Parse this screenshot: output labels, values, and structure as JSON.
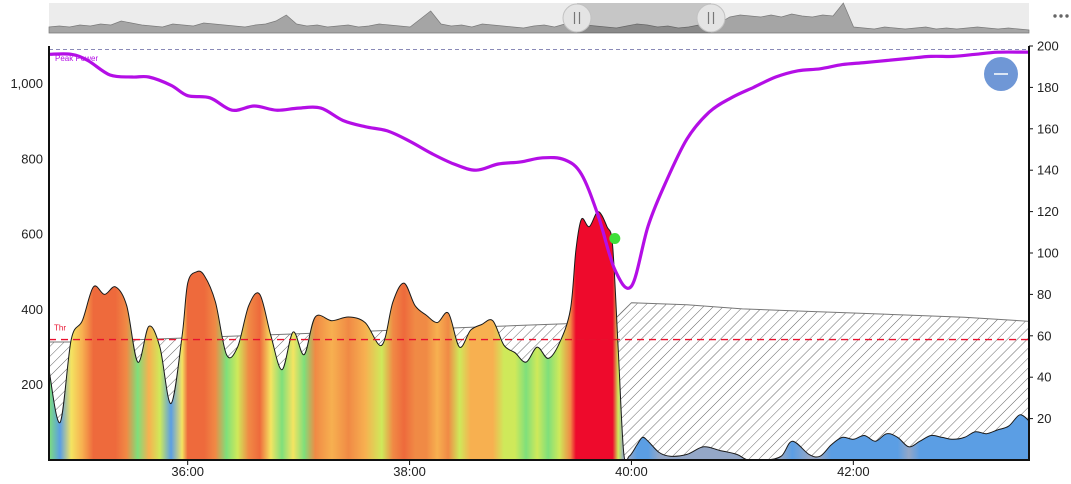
{
  "menu_icon": "more-horizontal-icon",
  "zoom_button_icon": "minus-icon",
  "handle_icon": "pause-grip-icon",
  "colors": {
    "peak_power": "#b40ee6",
    "threshold": "#e8102e",
    "marker": "#3ee038",
    "zoom_button": "#6f97d6",
    "low_power": "#8ea4c8",
    "wbal": "#666666"
  },
  "labels": {
    "peak_power": "Peak Power",
    "threshold": "Thr"
  },
  "chart_data": {
    "type": "area",
    "x_unit": "minutes",
    "x_range": [
      "34:45",
      "43:35"
    ],
    "x_ticks": [
      "36:00",
      "38:00",
      "40:00",
      "42:00"
    ],
    "y_left": {
      "ticks": [
        "200",
        "400",
        "600",
        "800",
        "1,000"
      ],
      "range": [
        0,
        1100
      ]
    },
    "y_right": {
      "ticks": [
        "20",
        "40",
        "60",
        "80",
        "100",
        "120",
        "140",
        "160",
        "180",
        "200"
      ],
      "range": [
        0,
        200
      ]
    },
    "threshold": 320,
    "series": [
      {
        "name": "",
        "axis": "left",
        "x": [
          34.75,
          34.85,
          34.95,
          35.05,
          35.15,
          35.25,
          35.35,
          35.45,
          35.55,
          35.65,
          35.75,
          35.85,
          35.95,
          36.0,
          36.08,
          36.15,
          36.25,
          36.35,
          36.45,
          36.55,
          36.65,
          36.75,
          36.85,
          36.95,
          37.05,
          37.15,
          37.3,
          37.45,
          37.6,
          37.75,
          37.85,
          37.95,
          38.05,
          38.15,
          38.25,
          38.35,
          38.45,
          38.55,
          38.65,
          38.75,
          38.85,
          38.95,
          39.05,
          39.15,
          39.25,
          39.35,
          39.45,
          39.5,
          39.55,
          39.62,
          39.7,
          39.78,
          39.83,
          39.88,
          39.93,
          39.98,
          40.05,
          40.1,
          40.15,
          40.25,
          40.35,
          40.5,
          40.65,
          40.8,
          40.95,
          41.05,
          41.2,
          41.35,
          41.45,
          41.6,
          41.7,
          41.8,
          41.9,
          42.0,
          42.1,
          42.2,
          42.3,
          42.4,
          42.5,
          42.6,
          42.7,
          42.8,
          42.9,
          43.0,
          43.1,
          43.2,
          43.3,
          43.4,
          43.5,
          43.58
        ],
        "values": [
          240,
          100,
          320,
          370,
          460,
          440,
          460,
          410,
          260,
          355,
          300,
          150,
          330,
          470,
          500,
          490,
          420,
          280,
          300,
          410,
          440,
          330,
          240,
          340,
          280,
          380,
          370,
          380,
          365,
          305,
          420,
          470,
          410,
          385,
          365,
          390,
          300,
          345,
          360,
          370,
          305,
          285,
          260,
          300,
          270,
          310,
          400,
          560,
          640,
          620,
          660,
          620,
          570,
          300,
          20,
          10,
          40,
          60,
          50,
          20,
          10,
          15,
          35,
          25,
          15,
          0,
          0,
          10,
          50,
          15,
          10,
          40,
          60,
          55,
          65,
          50,
          70,
          60,
          35,
          50,
          65,
          60,
          55,
          60,
          75,
          70,
          80,
          90,
          120,
          105
        ]
      },
      {
        "name": "Peak Power",
        "axis": "right",
        "x": [
          34.75,
          34.95,
          35.1,
          35.3,
          35.5,
          35.65,
          35.85,
          36.0,
          36.2,
          36.4,
          36.6,
          36.8,
          37.0,
          37.2,
          37.4,
          37.6,
          37.8,
          38.0,
          38.2,
          38.4,
          38.6,
          38.8,
          39.0,
          39.2,
          39.4,
          39.55,
          39.7,
          39.85,
          40.0,
          40.15,
          40.3,
          40.5,
          40.7,
          40.9,
          41.1,
          41.3,
          41.5,
          41.7,
          41.9,
          42.1,
          42.3,
          42.5,
          42.7,
          42.9,
          43.1,
          43.3,
          43.58
        ],
        "values": [
          196,
          196,
          193,
          186,
          185,
          185,
          181,
          176,
          175,
          169,
          171,
          169,
          170,
          170,
          164,
          161,
          159,
          154,
          148,
          143,
          140,
          143,
          144,
          146,
          145,
          138,
          118,
          92,
          84,
          113,
          133,
          155,
          168,
          175,
          180,
          185,
          188,
          189,
          191,
          192,
          193,
          194,
          195,
          195,
          196,
          197,
          197
        ]
      },
      {
        "name": "",
        "axis": "right",
        "style": "hatched",
        "x": [
          34.75,
          35.0,
          35.5,
          36.0,
          36.5,
          37.0,
          37.5,
          38.0,
          38.5,
          39.0,
          39.5,
          39.83,
          40.0,
          40.5,
          41.0,
          41.5,
          42.0,
          42.5,
          43.0,
          43.58
        ],
        "values": [
          57,
          57,
          58,
          59,
          60,
          61,
          62,
          63,
          64,
          65,
          66,
          67,
          76,
          75,
          73,
          72,
          71,
          70,
          69,
          67
        ]
      }
    ],
    "annotations": [
      {
        "type": "marker",
        "x": 39.85,
        "axis": "right",
        "value": 107
      }
    ]
  }
}
